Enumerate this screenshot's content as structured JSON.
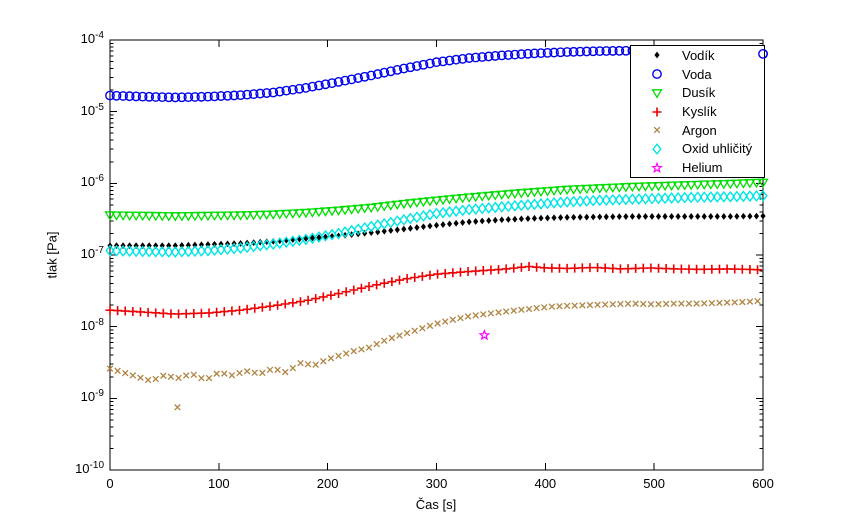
{
  "figure": {
    "axes": {
      "xlabel": "Čas [s]",
      "ylabel": "tlak [Pa]",
      "x_ticks": [
        0,
        100,
        200,
        300,
        400,
        500,
        600
      ],
      "y_tick_base": "10",
      "y_tick_exponents": [
        -4,
        -5,
        -6,
        -7,
        -8,
        -9,
        -10
      ],
      "xlim": [
        0,
        600
      ],
      "ylim": [
        1e-10,
        0.0001
      ],
      "y_scale": "log",
      "box": true,
      "grid": false
    }
  },
  "legend": {
    "position": "northeast",
    "entries": [
      {
        "label": "Vodík"
      },
      {
        "label": "Voda"
      },
      {
        "label": "Dusík"
      },
      {
        "label": "Kyslík"
      },
      {
        "label": "Argon"
      },
      {
        "label": "Oxid uhličitý"
      },
      {
        "label": "Helium"
      }
    ]
  },
  "chart_data": {
    "type": "scatter",
    "title": "",
    "xlabel": "Čas [s]",
    "ylabel": "tlak [Pa]",
    "xlim": [
      0,
      600
    ],
    "ylim": [
      1e-10,
      0.0001
    ],
    "y_scale": "log",
    "legend_position": "northeast",
    "series": [
      {
        "id": "vodik",
        "name": "Vodík",
        "marker": "point",
        "color": "#000000",
        "sample_step_s": 6,
        "points": [
          [
            0,
            1.35e-07
          ],
          [
            30,
            1.35e-07
          ],
          [
            60,
            1.35e-07
          ],
          [
            90,
            1.4e-07
          ],
          [
            120,
            1.45e-07
          ],
          [
            150,
            1.55e-07
          ],
          [
            180,
            1.7e-07
          ],
          [
            210,
            1.85e-07
          ],
          [
            240,
            2.05e-07
          ],
          [
            270,
            2.3e-07
          ],
          [
            300,
            2.6e-07
          ],
          [
            330,
            2.9e-07
          ],
          [
            360,
            3.1e-07
          ],
          [
            390,
            3.25e-07
          ],
          [
            420,
            3.35e-07
          ],
          [
            450,
            3.4e-07
          ],
          [
            480,
            3.45e-07
          ],
          [
            510,
            3.45e-07
          ],
          [
            540,
            3.45e-07
          ],
          [
            570,
            3.45e-07
          ],
          [
            600,
            3.5e-07
          ]
        ]
      },
      {
        "id": "voda",
        "name": "Voda",
        "marker": "circle",
        "color": "#0000EE",
        "sample_step_s": 6,
        "points": [
          [
            0,
            1.68e-05
          ],
          [
            30,
            1.62e-05
          ],
          [
            60,
            1.58e-05
          ],
          [
            90,
            1.62e-05
          ],
          [
            120,
            1.7e-05
          ],
          [
            150,
            1.85e-05
          ],
          [
            180,
            2.15e-05
          ],
          [
            210,
            2.6e-05
          ],
          [
            240,
            3.2e-05
          ],
          [
            270,
            4e-05
          ],
          [
            300,
            4.9e-05
          ],
          [
            330,
            5.6e-05
          ],
          [
            360,
            6.1e-05
          ],
          [
            390,
            6.5e-05
          ],
          [
            420,
            6.8e-05
          ],
          [
            450,
            7e-05
          ],
          [
            480,
            7.1e-05
          ],
          [
            510,
            7e-05
          ],
          [
            540,
            6.9e-05
          ],
          [
            570,
            6.7e-05
          ],
          [
            600,
            6.4e-05
          ]
        ]
      },
      {
        "id": "dusik",
        "name": "Dusík",
        "marker": "triangle-down",
        "color": "#00DD00",
        "sample_step_s": 6,
        "points": [
          [
            0,
            3.6e-07
          ],
          [
            30,
            3.55e-07
          ],
          [
            60,
            3.5e-07
          ],
          [
            90,
            3.55e-07
          ],
          [
            120,
            3.6e-07
          ],
          [
            150,
            3.7e-07
          ],
          [
            180,
            3.9e-07
          ],
          [
            210,
            4.2e-07
          ],
          [
            240,
            4.6e-07
          ],
          [
            270,
            5.2e-07
          ],
          [
            300,
            5.8e-07
          ],
          [
            330,
            6.4e-07
          ],
          [
            360,
            7e-07
          ],
          [
            390,
            7.6e-07
          ],
          [
            420,
            8.2e-07
          ],
          [
            450,
            8.6e-07
          ],
          [
            480,
            9e-07
          ],
          [
            510,
            9.3e-07
          ],
          [
            540,
            9.6e-07
          ],
          [
            570,
            9.9e-07
          ],
          [
            600,
            1.03e-06
          ]
        ]
      },
      {
        "id": "kyslik",
        "name": "Kyslík",
        "marker": "plus",
        "color": "#EE0000",
        "sample_step_s": 7,
        "points": [
          [
            0,
            1.7e-08
          ],
          [
            30,
            1.6e-08
          ],
          [
            60,
            1.5e-08
          ],
          [
            90,
            1.55e-08
          ],
          [
            120,
            1.7e-08
          ],
          [
            150,
            1.95e-08
          ],
          [
            180,
            2.3e-08
          ],
          [
            210,
            2.9e-08
          ],
          [
            240,
            3.7e-08
          ],
          [
            270,
            4.6e-08
          ],
          [
            300,
            5.4e-08
          ],
          [
            330,
            5.9e-08
          ],
          [
            360,
            6.3e-08
          ],
          [
            385,
            6.9e-08
          ],
          [
            400,
            6.6e-08
          ],
          [
            420,
            6.5e-08
          ],
          [
            445,
            6.7e-08
          ],
          [
            470,
            6.4e-08
          ],
          [
            495,
            6.6e-08
          ],
          [
            520,
            6.4e-08
          ],
          [
            545,
            6.3e-08
          ],
          [
            570,
            6.4e-08
          ],
          [
            600,
            6.2e-08
          ]
        ]
      },
      {
        "id": "argon",
        "name": "Argon",
        "marker": "x",
        "color": "#B08442",
        "sample_step_s": 7,
        "points": [
          [
            0,
            2.6e-09
          ],
          [
            12,
            2.3e-09
          ],
          [
            25,
            2e-09
          ],
          [
            38,
            1.75e-09
          ],
          [
            50,
            2.1e-09
          ],
          [
            62,
            1.9e-09
          ],
          [
            75,
            2.2e-09
          ],
          [
            88,
            1.8e-09
          ],
          [
            100,
            2.3e-09
          ],
          [
            112,
            2.1e-09
          ],
          [
            125,
            2.4e-09
          ],
          [
            138,
            2.2e-09
          ],
          [
            150,
            2.6e-09
          ],
          [
            162,
            2.3e-09
          ],
          [
            175,
            3.1e-09
          ],
          [
            188,
            2.9e-09
          ],
          [
            200,
            3.5e-09
          ],
          [
            212,
            4e-09
          ],
          [
            225,
            4.6e-09
          ],
          [
            238,
            5.1e-09
          ],
          [
            250,
            6.2e-09
          ],
          [
            262,
            7.2e-09
          ],
          [
            275,
            8.3e-09
          ],
          [
            288,
            9.6e-09
          ],
          [
            300,
            1.1e-08
          ],
          [
            315,
            1.25e-08
          ],
          [
            330,
            1.4e-08
          ],
          [
            345,
            1.5e-08
          ],
          [
            360,
            1.6e-08
          ],
          [
            375,
            1.7e-08
          ],
          [
            390,
            1.8e-08
          ],
          [
            405,
            1.9e-08
          ],
          [
            420,
            1.95e-08
          ],
          [
            440,
            2e-08
          ],
          [
            460,
            2.05e-08
          ],
          [
            480,
            2.1e-08
          ],
          [
            500,
            2.05e-08
          ],
          [
            520,
            2.1e-08
          ],
          [
            540,
            2.1e-08
          ],
          [
            560,
            2.15e-08
          ],
          [
            580,
            2.2e-08
          ],
          [
            600,
            2.3e-08
          ]
        ],
        "outliers": [
          [
            62,
            7.5e-10
          ]
        ]
      },
      {
        "id": "oxid-uhlicity",
        "name": "Oxid uhličitý",
        "marker": "diamond",
        "color": "#00E5E5",
        "sample_step_s": 6,
        "points": [
          [
            0,
            1.15e-07
          ],
          [
            30,
            1.12e-07
          ],
          [
            60,
            1.1e-07
          ],
          [
            90,
            1.15e-07
          ],
          [
            120,
            1.25e-07
          ],
          [
            150,
            1.42e-07
          ],
          [
            180,
            1.65e-07
          ],
          [
            210,
            2e-07
          ],
          [
            240,
            2.5e-07
          ],
          [
            270,
            3.1e-07
          ],
          [
            300,
            3.8e-07
          ],
          [
            330,
            4.3e-07
          ],
          [
            360,
            4.7e-07
          ],
          [
            390,
            5.1e-07
          ],
          [
            420,
            5.5e-07
          ],
          [
            450,
            5.8e-07
          ],
          [
            480,
            6e-07
          ],
          [
            510,
            6.2e-07
          ],
          [
            540,
            6.4e-07
          ],
          [
            570,
            6.5e-07
          ],
          [
            600,
            6.7e-07
          ]
        ]
      },
      {
        "id": "helium",
        "name": "Helium",
        "marker": "pentagram",
        "color": "#FF00FF",
        "sample_step_s": null,
        "points": [
          [
            344,
            7.6e-09
          ]
        ]
      }
    ]
  }
}
